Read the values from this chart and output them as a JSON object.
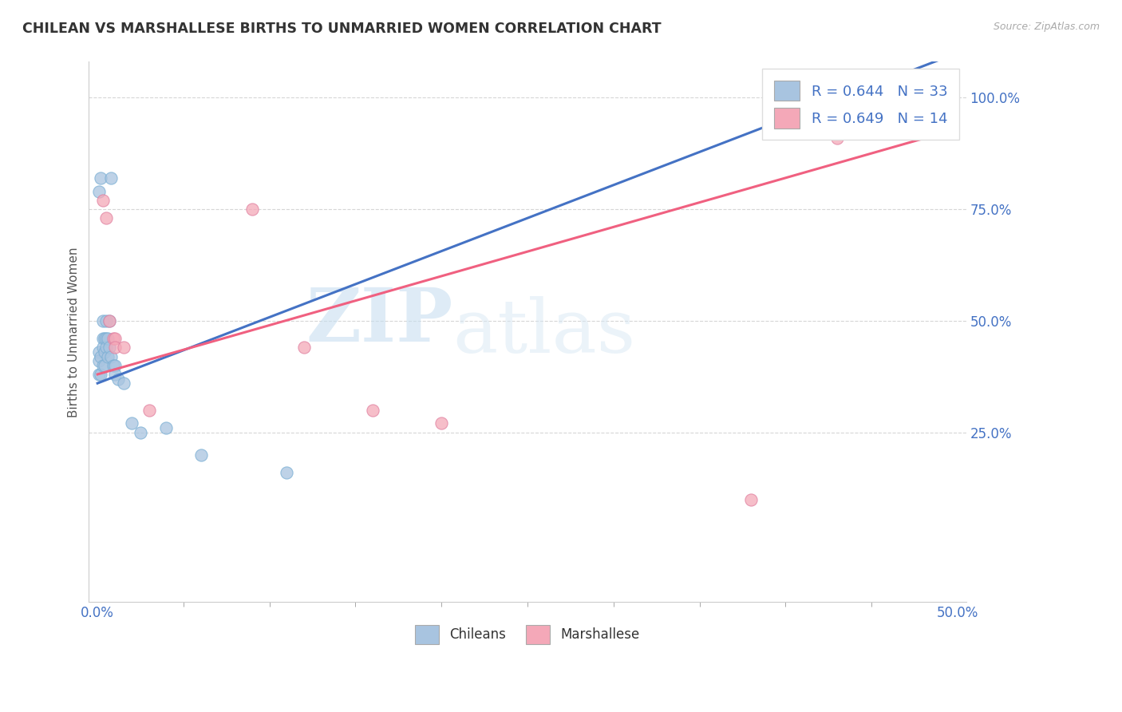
{
  "title": "CHILEAN VS MARSHALLESE BIRTHS TO UNMARRIED WOMEN CORRELATION CHART",
  "source": "Source: ZipAtlas.com",
  "xlabel_chileans": "Chileans",
  "xlabel_marshallese": "Marshallese",
  "ylabel": "Births to Unmarried Women",
  "xlim": [
    -0.005,
    0.505
  ],
  "ylim": [
    -0.13,
    1.08
  ],
  "xtick_positions": [
    0.0,
    0.5
  ],
  "xtick_labels": [
    "0.0%",
    "50.0%"
  ],
  "ytick_positions": [
    0.25,
    0.5,
    0.75,
    1.0
  ],
  "ytick_labels": [
    "25.0%",
    "50.0%",
    "75.0%",
    "100.0%"
  ],
  "r_chilean": 0.644,
  "n_chilean": 33,
  "r_marshallese": 0.649,
  "n_marshallese": 14,
  "color_chilean": "#a8c4e0",
  "color_marshallese": "#f4a8b8",
  "line_color_chilean": "#4472c4",
  "line_color_marshallese": "#f06080",
  "watermark_zip": "ZIP",
  "watermark_atlas": "atlas",
  "chilean_x": [
    0.002,
    0.008,
    0.001,
    0.001,
    0.001,
    0.001,
    0.002,
    0.002,
    0.003,
    0.003,
    0.003,
    0.003,
    0.004,
    0.004,
    0.004,
    0.005,
    0.005,
    0.005,
    0.006,
    0.006,
    0.007,
    0.007,
    0.008,
    0.009,
    0.01,
    0.01,
    0.012,
    0.015,
    0.02,
    0.025,
    0.04,
    0.06,
    0.11
  ],
  "chilean_y": [
    0.82,
    0.82,
    0.79,
    0.43,
    0.41,
    0.38,
    0.42,
    0.38,
    0.5,
    0.46,
    0.44,
    0.4,
    0.46,
    0.43,
    0.4,
    0.5,
    0.46,
    0.44,
    0.46,
    0.42,
    0.5,
    0.44,
    0.42,
    0.4,
    0.4,
    0.38,
    0.37,
    0.36,
    0.27,
    0.25,
    0.26,
    0.2,
    0.16
  ],
  "marshallese_x": [
    0.003,
    0.005,
    0.007,
    0.009,
    0.01,
    0.01,
    0.015,
    0.03,
    0.09,
    0.12,
    0.16,
    0.2,
    0.38,
    0.43
  ],
  "marshallese_y": [
    0.77,
    0.73,
    0.5,
    0.46,
    0.46,
    0.44,
    0.44,
    0.3,
    0.75,
    0.44,
    0.3,
    0.27,
    0.1,
    0.91
  ],
  "line_chilean_x0": 0.0,
  "line_chilean_y0": 0.36,
  "line_chilean_x1": 0.5,
  "line_chilean_y1": 1.1,
  "line_marshallese_x0": 0.0,
  "line_marshallese_y0": 0.38,
  "line_marshallese_x1": 0.5,
  "line_marshallese_y1": 0.93
}
